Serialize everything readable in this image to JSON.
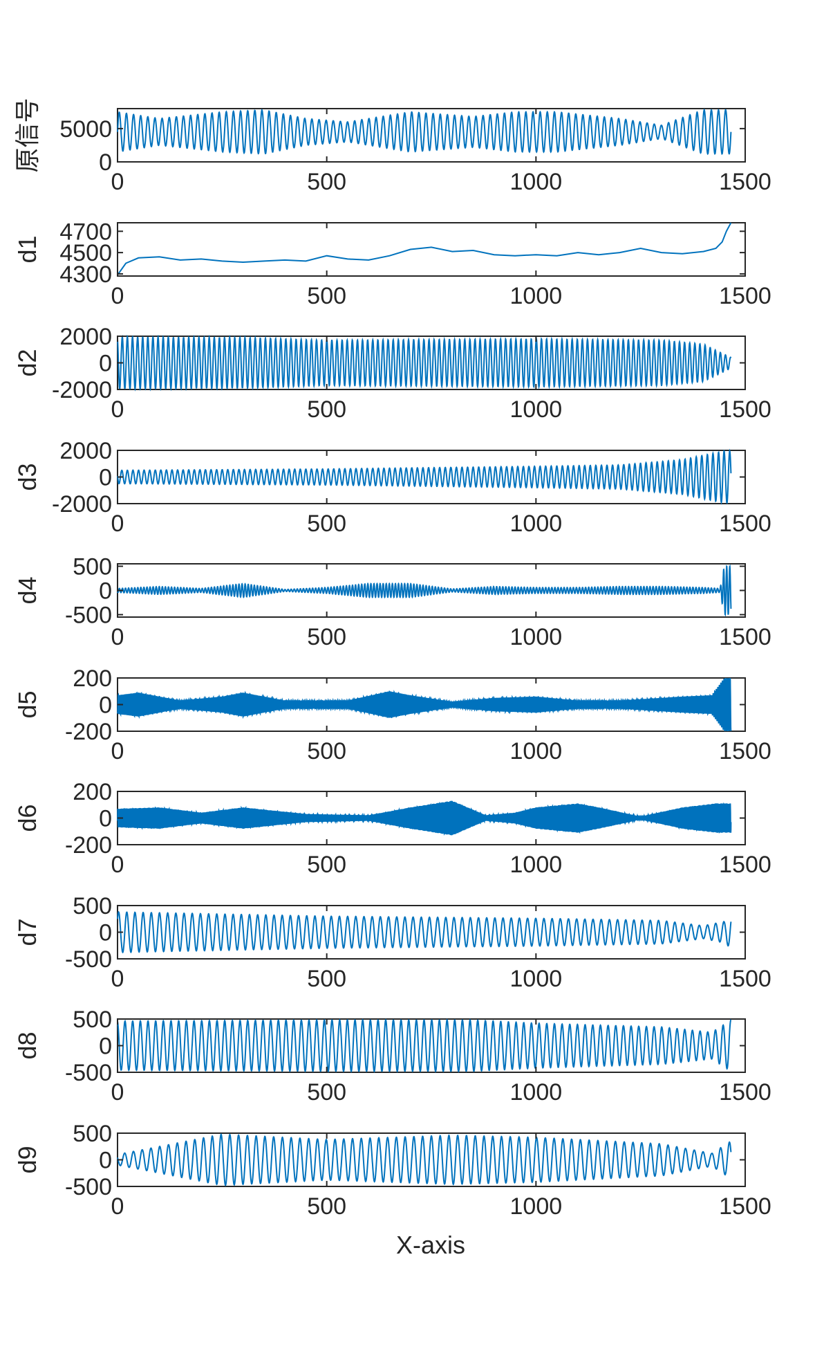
{
  "figure": {
    "xlabel": "X-axis"
  },
  "chart_data": [
    {
      "type": "line",
      "ylabel": "原信号",
      "xlim": [
        0,
        1500
      ],
      "ylim": [
        0,
        8000
      ],
      "x_ticks": [
        "0",
        "500",
        "1000",
        "1500"
      ],
      "y_ticks": [
        "0",
        "5000"
      ],
      "series": [
        {
          "color": "#0072BD",
          "n_points": 1466,
          "baseline": 4500,
          "amplitude": 3000,
          "envelope_x": [
            0,
            100,
            250,
            350,
            450,
            550,
            700,
            850,
            950,
            1050,
            1200,
            1300,
            1400,
            1466
          ],
          "envelope_amp": [
            3000,
            2000,
            3000,
            3300,
            2000,
            1500,
            3000,
            2300,
            3000,
            3000,
            2000,
            1000,
            3300,
            3300
          ]
        }
      ]
    },
    {
      "type": "line",
      "ylabel": "d1",
      "xlim": [
        0,
        1500
      ],
      "ylim": [
        4280,
        4780
      ],
      "x_ticks": [
        "0",
        "500",
        "1000",
        "1500"
      ],
      "y_ticks": [
        "4300",
        "4500",
        "4700"
      ],
      "series": [
        {
          "color": "#0072BD",
          "x": [
            0,
            20,
            50,
            100,
            150,
            200,
            250,
            300,
            350,
            400,
            450,
            500,
            550,
            600,
            650,
            700,
            750,
            800,
            850,
            900,
            950,
            1000,
            1050,
            1100,
            1150,
            1200,
            1250,
            1300,
            1350,
            1400,
            1430,
            1445,
            1455,
            1466
          ],
          "y": [
            4290,
            4400,
            4450,
            4460,
            4430,
            4440,
            4420,
            4410,
            4420,
            4430,
            4420,
            4470,
            4440,
            4430,
            4470,
            4530,
            4550,
            4510,
            4520,
            4480,
            4470,
            4480,
            4470,
            4500,
            4480,
            4500,
            4540,
            4500,
            4490,
            4510,
            4540,
            4600,
            4700,
            4780
          ]
        }
      ]
    },
    {
      "type": "line",
      "ylabel": "d2",
      "xlim": [
        0,
        1500
      ],
      "ylim": [
        -2000,
        2000
      ],
      "x_ticks": [
        "0",
        "500",
        "1000",
        "1500"
      ],
      "y_ticks": [
        "-2000",
        "0",
        "2000"
      ],
      "series": [
        {
          "color": "#0072BD",
          "n_points": 1466,
          "baseline": 0,
          "amplitude": 1900,
          "envelope_x": [
            0,
            300,
            500,
            1000,
            1300,
            1400,
            1466
          ],
          "envelope_amp": [
            1950,
            1900,
            1700,
            1800,
            1700,
            1400,
            400
          ]
        }
      ]
    },
    {
      "type": "line",
      "ylabel": "d3",
      "xlim": [
        0,
        1500
      ],
      "ylim": [
        -2000,
        2000
      ],
      "x_ticks": [
        "0",
        "500",
        "1000",
        "1500"
      ],
      "y_ticks": [
        "-2000",
        "0",
        "2000"
      ],
      "series": [
        {
          "color": "#0072BD",
          "n_points": 1466,
          "baseline": 0,
          "amplitude": 700,
          "envelope_x": [
            0,
            500,
            1000,
            1200,
            1350,
            1450,
            1466
          ],
          "envelope_amp": [
            500,
            600,
            800,
            900,
            1300,
            1950,
            1950
          ]
        }
      ]
    },
    {
      "type": "line",
      "ylabel": "d4",
      "xlim": [
        0,
        1500
      ],
      "ylim": [
        -550,
        550
      ],
      "x_ticks": [
        "0",
        "500",
        "1000",
        "1500"
      ],
      "y_ticks": [
        "-500",
        "0",
        "500"
      ],
      "series": [
        {
          "color": "#0072BD",
          "n_points": 1466,
          "baseline": 0,
          "amplitude": 100,
          "envelope_x": [
            0,
            100,
            200,
            300,
            400,
            500,
            600,
            700,
            800,
            900,
            1000,
            1100,
            1200,
            1300,
            1400,
            1440,
            1450,
            1466
          ],
          "envelope_amp": [
            40,
            80,
            40,
            140,
            20,
            60,
            140,
            140,
            30,
            80,
            60,
            60,
            80,
            80,
            60,
            40,
            500,
            500
          ]
        }
      ]
    },
    {
      "type": "line",
      "ylabel": "d5",
      "xlim": [
        0,
        1500
      ],
      "ylim": [
        -200,
        200
      ],
      "x_ticks": [
        "0",
        "500",
        "1000",
        "1500"
      ],
      "y_ticks": [
        "-200",
        "0",
        "200"
      ],
      "series": [
        {
          "color": "#0072BD",
          "n_points": 1466,
          "baseline": 0,
          "amplitude": 80,
          "envelope_x": [
            0,
            50,
            150,
            250,
            300,
            400,
            550,
            650,
            700,
            800,
            900,
            1000,
            1100,
            1200,
            1350,
            1420,
            1450,
            1466
          ],
          "envelope_amp": [
            70,
            90,
            30,
            60,
            90,
            30,
            30,
            100,
            70,
            20,
            50,
            60,
            30,
            30,
            60,
            70,
            200,
            200
          ]
        }
      ]
    },
    {
      "type": "line",
      "ylabel": "d6",
      "xlim": [
        0,
        1500
      ],
      "ylim": [
        -200,
        200
      ],
      "x_ticks": [
        "0",
        "500",
        "1000",
        "1500"
      ],
      "y_ticks": [
        "-200",
        "0",
        "200"
      ],
      "series": [
        {
          "color": "#0072BD",
          "n_points": 1466,
          "baseline": 0,
          "amplitude": 80,
          "envelope_x": [
            0,
            100,
            200,
            300,
            450,
            600,
            700,
            800,
            880,
            950,
            1000,
            1100,
            1150,
            1250,
            1350,
            1430,
            1466
          ],
          "envelope_amp": [
            70,
            80,
            40,
            80,
            30,
            20,
            80,
            130,
            20,
            40,
            80,
            110,
            80,
            10,
            80,
            110,
            110
          ]
        }
      ]
    },
    {
      "type": "line",
      "ylabel": "d7",
      "xlim": [
        0,
        1500
      ],
      "ylim": [
        -500,
        500
      ],
      "x_ticks": [
        "0",
        "500",
        "1000",
        "1500"
      ],
      "y_ticks": [
        "-500",
        "0",
        "500"
      ],
      "series": [
        {
          "color": "#0072BD",
          "n_points": 1466,
          "baseline": 0,
          "amplitude": 330,
          "envelope_x": [
            0,
            500,
            1000,
            1300,
            1400,
            1450,
            1466
          ],
          "envelope_amp": [
            380,
            300,
            260,
            220,
            120,
            200,
            300
          ]
        }
      ]
    },
    {
      "type": "line",
      "ylabel": "d8",
      "xlim": [
        0,
        1500
      ],
      "ylim": [
        -500,
        500
      ],
      "x_ticks": [
        "0",
        "500",
        "1000",
        "1500"
      ],
      "y_ticks": [
        "-500",
        "0",
        "500"
      ],
      "series": [
        {
          "color": "#0072BD",
          "n_points": 1466,
          "baseline": 0,
          "amplitude": 460,
          "envelope_x": [
            0,
            500,
            850,
            1000,
            1300,
            1420,
            1466
          ],
          "envelope_amp": [
            460,
            480,
            480,
            420,
            350,
            250,
            480
          ]
        }
      ]
    },
    {
      "type": "line",
      "ylabel": "d9",
      "xlim": [
        0,
        1500
      ],
      "ylim": [
        -500,
        500
      ],
      "x_ticks": [
        "0",
        "500",
        "1000",
        "1500"
      ],
      "y_ticks": [
        "-500",
        "0",
        "500"
      ],
      "series": [
        {
          "color": "#0072BD",
          "n_points": 1466,
          "baseline": 0,
          "amplitude": 400,
          "envelope_x": [
            0,
            100,
            250,
            500,
            800,
            1000,
            1300,
            1420,
            1466
          ],
          "envelope_amp": [
            100,
            250,
            480,
            380,
            460,
            420,
            300,
            120,
            350
          ]
        }
      ]
    }
  ]
}
